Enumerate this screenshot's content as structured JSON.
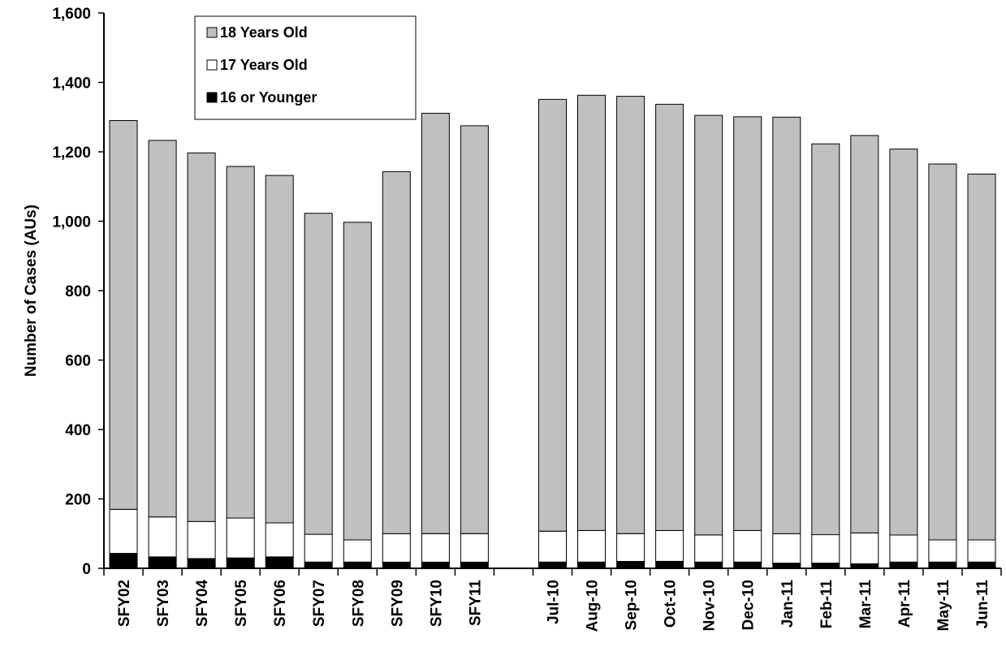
{
  "chart_data": {
    "type": "bar",
    "stacked": true,
    "ylabel": "Number of Cases (AUs)",
    "xlabel": "",
    "ylim": [
      0,
      1600
    ],
    "yticks": [
      0,
      200,
      400,
      600,
      800,
      1000,
      1200,
      1400,
      1600
    ],
    "ytick_labels": [
      "0",
      "200",
      "400",
      "600",
      "800",
      "1,000",
      "1,200",
      "1,400",
      "1,600"
    ],
    "grid": false,
    "legend_position": "top-left",
    "categories": [
      "SFY02",
      "SFY03",
      "SFY04",
      "SFY05",
      "SFY06",
      "SFY07",
      "SFY08",
      "SFY09",
      "SFY10",
      "SFY11",
      "",
      "Jul-10",
      "Aug-10",
      "Sep-10",
      "Oct-10",
      "Nov-10",
      "Dec-10",
      "Jan-11",
      "Feb-11",
      "Mar-11",
      "Apr-11",
      "May-11",
      "Jun-11"
    ],
    "series": [
      {
        "name": "16 or Younger",
        "color": "#000000",
        "values": [
          43,
          33,
          28,
          30,
          33,
          18,
          18,
          18,
          18,
          18,
          null,
          18,
          18,
          20,
          20,
          18,
          18,
          15,
          15,
          13,
          18,
          18,
          18
        ]
      },
      {
        "name": "17 Years Old",
        "color": "#ffffff",
        "values": [
          127,
          115,
          107,
          115,
          98,
          80,
          64,
          82,
          82,
          82,
          null,
          89,
          91,
          80,
          89,
          78,
          91,
          85,
          82,
          89,
          78,
          64,
          64
        ]
      },
      {
        "name": "18 Years Old",
        "color": "#c0c0c0",
        "values": [
          1120,
          1085,
          1062,
          1013,
          1001,
          925,
          915,
          1043,
          1211,
          1175,
          null,
          1244,
          1254,
          1260,
          1228,
          1209,
          1192,
          1200,
          1126,
          1145,
          1112,
          1083,
          1054
        ]
      }
    ]
  }
}
